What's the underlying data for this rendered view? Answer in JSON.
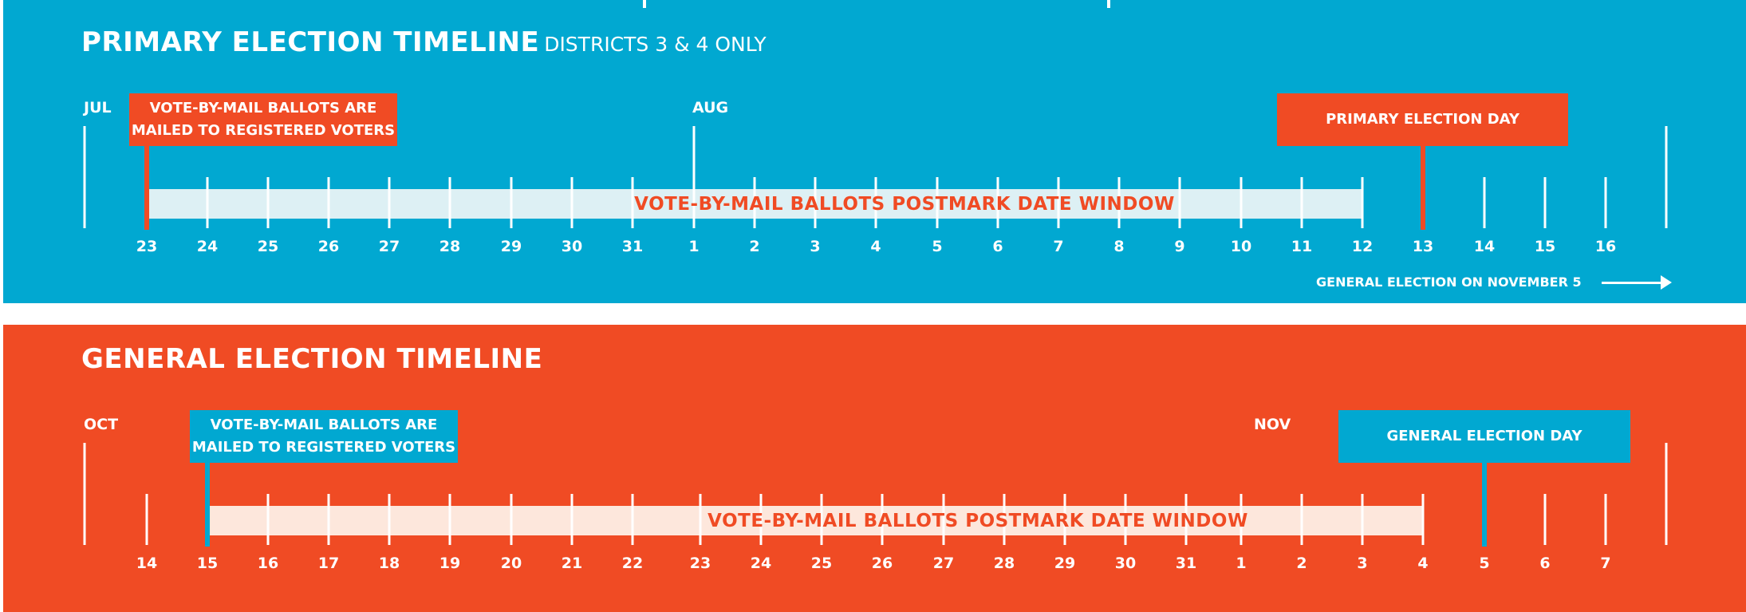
{
  "colors": {
    "blue": "#01A8D1",
    "orange": "#F04B24",
    "light_blue_bar": "#DDF0F4",
    "light_orange_bar": "#FDE7DC",
    "white": "#FFFFFF"
  },
  "primary": {
    "title": "PRIMARY ELECTION TIMELINE",
    "subtitle": "DISTRICTS 3 & 4 ONLY",
    "months": [
      {
        "label": "JUL",
        "x": 101
      },
      {
        "label": "AUG",
        "x": 864
      }
    ],
    "ticks": [
      {
        "day": "23",
        "x": 180
      },
      {
        "day": "24",
        "x": 256
      },
      {
        "day": "25",
        "x": 332
      },
      {
        "day": "26",
        "x": 408
      },
      {
        "day": "27",
        "x": 484
      },
      {
        "day": "28",
        "x": 560
      },
      {
        "day": "29",
        "x": 637
      },
      {
        "day": "30",
        "x": 713
      },
      {
        "day": "31",
        "x": 789
      },
      {
        "day": "1",
        "x": 866
      },
      {
        "day": "2",
        "x": 942
      },
      {
        "day": "3",
        "x": 1018
      },
      {
        "day": "4",
        "x": 1094
      },
      {
        "day": "5",
        "x": 1171
      },
      {
        "day": "6",
        "x": 1247
      },
      {
        "day": "7",
        "x": 1323
      },
      {
        "day": "8",
        "x": 1399
      },
      {
        "day": "9",
        "x": 1475
      },
      {
        "day": "10",
        "x": 1552
      },
      {
        "day": "11",
        "x": 1628
      },
      {
        "day": "12",
        "x": 1704
      },
      {
        "day": "13",
        "x": 1780
      },
      {
        "day": "14",
        "x": 1857
      },
      {
        "day": "15",
        "x": 1933
      },
      {
        "day": "16",
        "x": 2009
      }
    ],
    "window_label": "VOTE-BY-MAIL BALLOTS POSTMARK DATE WINDOW",
    "mail_box_line1": "VOTE-BY-MAIL BALLOTS ARE",
    "mail_box_line2": "MAILED TO REGISTERED VOTERS",
    "election_day_label": "PRIMARY ELECTION DAY",
    "footer": "GENERAL ELECTION ON NOVEMBER 5"
  },
  "general": {
    "title": "GENERAL ELECTION TIMELINE",
    "months": [
      {
        "label": "OCT",
        "x": 101
      },
      {
        "label": "NOV",
        "x": 1568
      }
    ],
    "ticks": [
      {
        "day": "14",
        "x": 180
      },
      {
        "day": "15",
        "x": 256
      },
      {
        "day": "16",
        "x": 332
      },
      {
        "day": "17",
        "x": 408
      },
      {
        "day": "18",
        "x": 484
      },
      {
        "day": "19",
        "x": 560
      },
      {
        "day": "20",
        "x": 637
      },
      {
        "day": "21",
        "x": 713
      },
      {
        "day": "22",
        "x": 789
      },
      {
        "day": "23",
        "x": 874
      },
      {
        "day": "24",
        "x": 950
      },
      {
        "day": "25",
        "x": 1026
      },
      {
        "day": "26",
        "x": 1102
      },
      {
        "day": "27",
        "x": 1179
      },
      {
        "day": "28",
        "x": 1255
      },
      {
        "day": "29",
        "x": 1331
      },
      {
        "day": "30",
        "x": 1407
      },
      {
        "day": "31",
        "x": 1483
      },
      {
        "day": "1",
        "x": 1552
      },
      {
        "day": "2",
        "x": 1628
      },
      {
        "day": "3",
        "x": 1704
      },
      {
        "day": "4",
        "x": 1780
      },
      {
        "day": "5",
        "x": 1857
      },
      {
        "day": "6",
        "x": 1933
      },
      {
        "day": "7",
        "x": 2009
      }
    ],
    "window_label": "VOTE-BY-MAIL BALLOTS POSTMARK DATE WINDOW",
    "mail_box_line1": "VOTE-BY-MAIL BALLOTS ARE",
    "mail_box_line2": "MAILED TO REGISTERED VOTERS",
    "election_day_label": "GENERAL ELECTION DAY"
  }
}
